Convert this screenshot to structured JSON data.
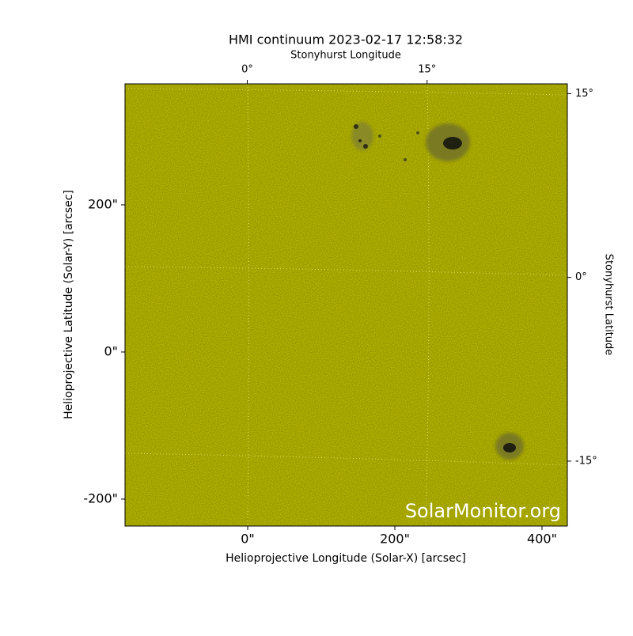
{
  "chart_data": {
    "type": "image",
    "title": "HMI continuum 2023-02-17 12:58:32",
    "x_label": "Helioprojective Longitude (Solar-X) [arcsec]",
    "y_label": "Helioprojective Latitude (Solar-Y) [arcsec]",
    "x2_label": "Stonyhurst Longitude",
    "y2_label": "Stonyhurst Latitude",
    "watermark": "SolarMonitor.org",
    "color": "#c8c800",
    "xlim": [
      -166.7,
      434.4
    ],
    "ylim": [
      -236.6,
      364.5
    ],
    "xticks": [
      {
        "value": 0,
        "label": "0\""
      },
      {
        "value": 200,
        "label": "200\""
      },
      {
        "value": 400,
        "label": "400\""
      }
    ],
    "yticks": [
      {
        "value": -200,
        "label": "-200\""
      },
      {
        "value": 0,
        "label": "0\""
      },
      {
        "value": 200,
        "label": "200\""
      }
    ],
    "x2lim": [
      -10.2,
      26.7
    ],
    "x2ticks": [
      {
        "value": 0,
        "label": "0°"
      },
      {
        "value": 15,
        "label": "15°"
      }
    ],
    "y2lim": [
      -20.3,
      15.8
    ],
    "y2ticks": [
      {
        "value": 15,
        "label": "15°"
      },
      {
        "value": 0,
        "label": "0°"
      },
      {
        "value": -15,
        "label": "-15°"
      }
    ]
  }
}
